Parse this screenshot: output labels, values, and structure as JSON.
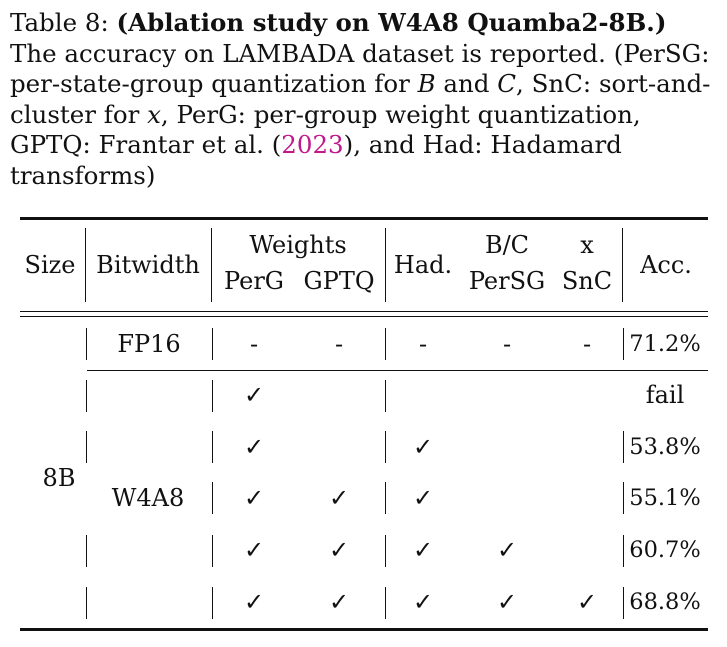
{
  "caption": {
    "label": "Table 8:",
    "title": "(Ablation study on W4A8 Quamba2-8B.)",
    "t1": "The accuracy on LAMBADA dataset is reported. (PerSG: per-state-group quantization for",
    "var_b": "B",
    "t_and": "and",
    "var_c": "C",
    "t2": ", SnC: sort-and-cluster for",
    "var_x": "x",
    "t3": ", PerG: per-group weight quantization, GPTQ: Frantar et al. (",
    "cite_year": "2023",
    "t4": "), and Had: Hadamard transforms)"
  },
  "table": {
    "headers": {
      "size": "Size",
      "bitwidth": "Bitwidth",
      "weights": "Weights",
      "perg": "PerG",
      "gptq": "GPTQ",
      "had": "Had.",
      "bc": "B/C",
      "persg": "PerSG",
      "x": "x",
      "snc": "SnC",
      "acc": "Acc."
    },
    "size_value": "8B",
    "fp_row": {
      "bitwidth": "FP16",
      "perg": "-",
      "gptq": "-",
      "had": "-",
      "persg": "-",
      "snc": "-",
      "acc": "71.2%"
    },
    "w4a8_label": "W4A8",
    "rows": [
      {
        "perg": "✓",
        "gptq": "",
        "had": "",
        "persg": "",
        "snc": "",
        "acc": "fail"
      },
      {
        "perg": "✓",
        "gptq": "",
        "had": "✓",
        "persg": "",
        "snc": "",
        "acc": "53.8%"
      },
      {
        "perg": "✓",
        "gptq": "✓",
        "had": "✓",
        "persg": "",
        "snc": "",
        "acc": "55.1%"
      },
      {
        "perg": "✓",
        "gptq": "✓",
        "had": "✓",
        "persg": "✓",
        "snc": "",
        "acc": "60.7%"
      },
      {
        "perg": "✓",
        "gptq": "✓",
        "had": "✓",
        "persg": "✓",
        "snc": "✓",
        "acc": "68.8%"
      }
    ]
  }
}
